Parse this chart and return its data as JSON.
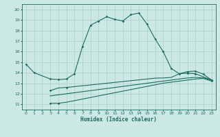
{
  "xlabel": "Humidex (Indice chaleur)",
  "xlim": [
    -0.5,
    23.5
  ],
  "ylim": [
    10.5,
    20.5
  ],
  "yticks": [
    11,
    12,
    13,
    14,
    15,
    16,
    17,
    18,
    19,
    20
  ],
  "xticks": [
    0,
    1,
    2,
    3,
    4,
    5,
    6,
    7,
    8,
    9,
    10,
    11,
    12,
    13,
    14,
    15,
    16,
    17,
    18,
    19,
    20,
    21,
    22,
    23
  ],
  "bg_color": "#cce8e5",
  "grid_color": "#a8d0cc",
  "line_color": "#1a6b5e",
  "curve1_x": [
    0,
    1,
    3,
    4,
    5,
    6,
    7,
    8,
    9,
    10,
    11,
    12,
    13,
    14,
    15,
    16,
    17,
    18,
    19,
    20,
    21,
    22,
    23
  ],
  "curve1_y": [
    14.8,
    14.0,
    13.4,
    13.35,
    13.4,
    13.9,
    16.5,
    18.5,
    18.9,
    19.3,
    19.05,
    18.9,
    19.5,
    19.65,
    18.6,
    17.2,
    16.0,
    14.4,
    13.9,
    14.1,
    14.15,
    13.85,
    13.3
  ],
  "curve2_x": [
    3,
    4,
    5,
    6,
    7,
    8,
    9,
    10,
    11,
    12,
    13,
    14,
    15,
    16,
    17,
    18,
    19,
    20,
    21,
    22,
    23
  ],
  "curve2_y": [
    12.3,
    12.55,
    12.6,
    12.68,
    12.76,
    12.84,
    12.92,
    13.0,
    13.08,
    13.16,
    13.24,
    13.32,
    13.4,
    13.48,
    13.5,
    13.55,
    13.9,
    13.95,
    13.9,
    13.6,
    13.3
  ],
  "curve3_x": [
    3,
    4,
    5,
    6,
    7,
    8,
    9,
    10,
    11,
    12,
    13,
    14,
    15,
    16,
    17,
    18,
    19,
    20,
    21,
    22,
    23
  ],
  "curve3_y": [
    11.1,
    11.1,
    11.2,
    11.35,
    11.5,
    11.65,
    11.8,
    11.95,
    12.1,
    12.25,
    12.4,
    12.55,
    12.7,
    12.85,
    13.0,
    13.1,
    13.2,
    13.3,
    13.4,
    13.45,
    13.2
  ],
  "curve4_x": [
    3,
    4,
    5,
    6,
    7,
    8,
    9,
    10,
    11,
    12,
    13,
    14,
    15,
    16,
    17,
    18,
    19,
    20,
    21,
    22,
    23
  ],
  "curve4_y": [
    11.8,
    11.9,
    12.0,
    12.1,
    12.2,
    12.3,
    12.4,
    12.5,
    12.6,
    12.7,
    12.8,
    12.9,
    13.0,
    13.1,
    13.2,
    13.3,
    13.4,
    13.5,
    13.55,
    13.5,
    13.3
  ]
}
